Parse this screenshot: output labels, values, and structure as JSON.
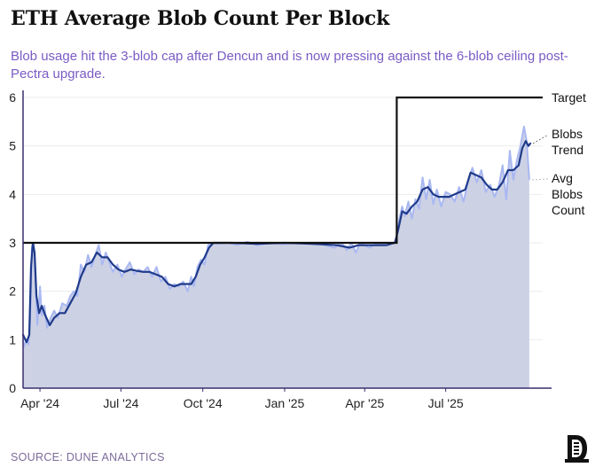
{
  "header": {
    "title": "ETH Average Blob Count Per Block",
    "subtitle": "Blob usage hit the 3-blob cap after Dencun and is now pressing against the 6-blob ceiling post-Pectra upgrade."
  },
  "footer": {
    "source": "SOURCE: DUNE ANALYTICS"
  },
  "colors": {
    "target": "#111111",
    "trend": "#1f3a8a",
    "avg": "#a9b8f2",
    "area": "#cdd1e4",
    "axis": "#3a2e6e",
    "subtitle": "#7a5bc4"
  },
  "chart_data": {
    "type": "line",
    "xlim": [
      "2024-03-13",
      "2025-10-18"
    ],
    "ylim": [
      0,
      6
    ],
    "yticks": [
      "0",
      "1",
      "2",
      "3",
      "4",
      "5",
      "6"
    ],
    "xticks": [
      {
        "date": "2024-04-01",
        "label": "Apr '24"
      },
      {
        "date": "2024-07-01",
        "label": "Jul '24"
      },
      {
        "date": "2024-10-01",
        "label": "Oct '24"
      },
      {
        "date": "2025-01-01",
        "label": "Jan '25"
      },
      {
        "date": "2025-04-01",
        "label": "Apr '25"
      },
      {
        "date": "2025-07-01",
        "label": "Jul '25"
      }
    ],
    "series": [
      {
        "name": "Target",
        "style": "step",
        "points": [
          [
            "2024-03-13",
            3
          ],
          [
            "2025-05-07",
            3
          ],
          [
            "2025-05-07",
            6
          ],
          [
            "2025-10-18",
            6
          ]
        ]
      },
      {
        "name": "Avg Blobs Count",
        "style": "area",
        "points": [
          [
            "2024-03-13",
            1.0
          ],
          [
            "2024-03-14",
            0.85
          ],
          [
            "2024-03-17",
            1.0
          ],
          [
            "2024-03-19",
            0.9
          ],
          [
            "2024-03-21",
            1.4
          ],
          [
            "2024-03-23",
            2.9
          ],
          [
            "2024-03-25",
            3.0
          ],
          [
            "2024-03-27",
            2.3
          ],
          [
            "2024-03-29",
            1.3
          ],
          [
            "2024-04-01",
            2.1
          ],
          [
            "2024-04-03",
            1.5
          ],
          [
            "2024-04-06",
            1.7
          ],
          [
            "2024-04-09",
            1.25
          ],
          [
            "2024-04-13",
            1.45
          ],
          [
            "2024-04-17",
            1.6
          ],
          [
            "2024-04-21",
            1.45
          ],
          [
            "2024-04-26",
            1.75
          ],
          [
            "2024-05-01",
            1.7
          ],
          [
            "2024-05-05",
            1.9
          ],
          [
            "2024-05-09",
            2.0
          ],
          [
            "2024-05-13",
            1.9
          ],
          [
            "2024-05-17",
            2.55
          ],
          [
            "2024-05-21",
            2.4
          ],
          [
            "2024-05-25",
            2.75
          ],
          [
            "2024-05-29",
            2.5
          ],
          [
            "2024-06-02",
            2.75
          ],
          [
            "2024-06-06",
            2.95
          ],
          [
            "2024-06-10",
            2.55
          ],
          [
            "2024-06-14",
            2.8
          ],
          [
            "2024-06-18",
            2.6
          ],
          [
            "2024-06-22",
            2.4
          ],
          [
            "2024-06-27",
            2.55
          ],
          [
            "2024-07-02",
            2.3
          ],
          [
            "2024-07-06",
            2.45
          ],
          [
            "2024-07-11",
            2.6
          ],
          [
            "2024-07-16",
            2.35
          ],
          [
            "2024-07-21",
            2.45
          ],
          [
            "2024-07-26",
            2.4
          ],
          [
            "2024-07-31",
            2.5
          ],
          [
            "2024-08-05",
            2.3
          ],
          [
            "2024-08-10",
            2.5
          ],
          [
            "2024-08-15",
            2.2
          ],
          [
            "2024-08-20",
            2.3
          ],
          [
            "2024-08-25",
            2.05
          ],
          [
            "2024-08-30",
            2.15
          ],
          [
            "2024-09-04",
            2.1
          ],
          [
            "2024-09-09",
            2.2
          ],
          [
            "2024-09-14",
            2.0
          ],
          [
            "2024-09-18",
            2.3
          ],
          [
            "2024-09-21",
            2.1
          ],
          [
            "2024-09-25",
            2.5
          ],
          [
            "2024-09-29",
            2.65
          ],
          [
            "2024-10-03",
            2.55
          ],
          [
            "2024-10-07",
            2.95
          ],
          [
            "2024-10-11",
            3.0
          ],
          [
            "2024-10-18",
            2.98
          ],
          [
            "2024-10-28",
            3.0
          ],
          [
            "2024-11-09",
            2.96
          ],
          [
            "2024-11-20",
            3.02
          ],
          [
            "2024-12-01",
            2.95
          ],
          [
            "2024-12-15",
            3.0
          ],
          [
            "2024-12-31",
            2.97
          ],
          [
            "2025-01-15",
            3.0
          ],
          [
            "2025-01-31",
            2.98
          ],
          [
            "2025-02-12",
            2.97
          ],
          [
            "2025-02-26",
            2.9
          ],
          [
            "2025-03-06",
            3.0
          ],
          [
            "2025-03-12",
            2.85
          ],
          [
            "2025-03-17",
            3.0
          ],
          [
            "2025-03-22",
            2.8
          ],
          [
            "2025-03-27",
            3.0
          ],
          [
            "2025-04-06",
            2.9
          ],
          [
            "2025-04-16",
            3.0
          ],
          [
            "2025-04-26",
            2.95
          ],
          [
            "2025-05-04",
            3.0
          ],
          [
            "2025-05-07",
            3.1
          ],
          [
            "2025-05-10",
            3.5
          ],
          [
            "2025-05-13",
            3.75
          ],
          [
            "2025-05-16",
            3.55
          ],
          [
            "2025-05-20",
            3.85
          ],
          [
            "2025-05-24",
            3.5
          ],
          [
            "2025-05-28",
            3.9
          ],
          [
            "2025-06-01",
            3.7
          ],
          [
            "2025-06-05",
            4.35
          ],
          [
            "2025-06-09",
            3.9
          ],
          [
            "2025-06-13",
            4.3
          ],
          [
            "2025-06-17",
            3.8
          ],
          [
            "2025-06-21",
            4.1
          ],
          [
            "2025-06-26",
            3.75
          ],
          [
            "2025-07-01",
            4.05
          ],
          [
            "2025-07-06",
            4.0
          ],
          [
            "2025-07-11",
            3.85
          ],
          [
            "2025-07-16",
            4.15
          ],
          [
            "2025-07-21",
            3.85
          ],
          [
            "2025-07-26",
            4.25
          ],
          [
            "2025-07-31",
            4.55
          ],
          [
            "2025-08-05",
            4.25
          ],
          [
            "2025-08-10",
            4.5
          ],
          [
            "2025-08-15",
            4.05
          ],
          [
            "2025-08-20",
            4.2
          ],
          [
            "2025-08-25",
            3.95
          ],
          [
            "2025-08-30",
            4.2
          ],
          [
            "2025-09-03",
            4.6
          ],
          [
            "2025-09-07",
            3.9
          ],
          [
            "2025-09-11",
            4.9
          ],
          [
            "2025-09-15",
            4.3
          ],
          [
            "2025-09-19",
            4.7
          ],
          [
            "2025-09-23",
            5.0
          ],
          [
            "2025-09-27",
            5.4
          ],
          [
            "2025-09-30",
            5.1
          ],
          [
            "2025-10-03",
            4.3
          ]
        ]
      },
      {
        "name": "Blobs Trend",
        "style": "line",
        "points": [
          [
            "2024-03-13",
            1.1
          ],
          [
            "2024-03-17",
            0.95
          ],
          [
            "2024-03-20",
            1.1
          ],
          [
            "2024-03-22",
            2.5
          ],
          [
            "2024-03-24",
            3.0
          ],
          [
            "2024-03-26",
            2.8
          ],
          [
            "2024-03-28",
            1.9
          ],
          [
            "2024-03-31",
            1.55
          ],
          [
            "2024-04-03",
            1.7
          ],
          [
            "2024-04-07",
            1.5
          ],
          [
            "2024-04-12",
            1.3
          ],
          [
            "2024-04-17",
            1.45
          ],
          [
            "2024-04-23",
            1.55
          ],
          [
            "2024-04-29",
            1.55
          ],
          [
            "2024-05-05",
            1.75
          ],
          [
            "2024-05-11",
            1.95
          ],
          [
            "2024-05-17",
            2.3
          ],
          [
            "2024-05-23",
            2.55
          ],
          [
            "2024-05-29",
            2.6
          ],
          [
            "2024-06-04",
            2.8
          ],
          [
            "2024-06-10",
            2.7
          ],
          [
            "2024-06-16",
            2.7
          ],
          [
            "2024-06-22",
            2.55
          ],
          [
            "2024-06-28",
            2.45
          ],
          [
            "2024-07-05",
            2.4
          ],
          [
            "2024-07-12",
            2.45
          ],
          [
            "2024-07-19",
            2.42
          ],
          [
            "2024-07-26",
            2.4
          ],
          [
            "2024-08-02",
            2.4
          ],
          [
            "2024-08-09",
            2.35
          ],
          [
            "2024-08-16",
            2.3
          ],
          [
            "2024-08-23",
            2.15
          ],
          [
            "2024-08-30",
            2.1
          ],
          [
            "2024-09-06",
            2.15
          ],
          [
            "2024-09-13",
            2.15
          ],
          [
            "2024-09-18",
            2.15
          ],
          [
            "2024-09-23",
            2.3
          ],
          [
            "2024-09-28",
            2.55
          ],
          [
            "2024-10-03",
            2.7
          ],
          [
            "2024-10-08",
            2.9
          ],
          [
            "2024-10-13",
            3.0
          ],
          [
            "2024-11-01",
            3.0
          ],
          [
            "2024-12-01",
            2.98
          ],
          [
            "2025-01-01",
            3.0
          ],
          [
            "2025-02-01",
            2.98
          ],
          [
            "2025-03-01",
            2.95
          ],
          [
            "2025-03-15",
            2.9
          ],
          [
            "2025-03-25",
            2.95
          ],
          [
            "2025-04-10",
            2.95
          ],
          [
            "2025-04-25",
            2.95
          ],
          [
            "2025-05-05",
            3.0
          ],
          [
            "2025-05-09",
            3.3
          ],
          [
            "2025-05-13",
            3.65
          ],
          [
            "2025-05-18",
            3.6
          ],
          [
            "2025-05-24",
            3.75
          ],
          [
            "2025-05-30",
            3.85
          ],
          [
            "2025-06-05",
            4.1
          ],
          [
            "2025-06-11",
            4.15
          ],
          [
            "2025-06-17",
            4.0
          ],
          [
            "2025-06-23",
            3.95
          ],
          [
            "2025-06-29",
            3.95
          ],
          [
            "2025-07-05",
            3.95
          ],
          [
            "2025-07-11",
            4.0
          ],
          [
            "2025-07-17",
            4.05
          ],
          [
            "2025-07-23",
            4.1
          ],
          [
            "2025-07-29",
            4.45
          ],
          [
            "2025-08-04",
            4.4
          ],
          [
            "2025-08-10",
            4.35
          ],
          [
            "2025-08-16",
            4.2
          ],
          [
            "2025-08-22",
            4.1
          ],
          [
            "2025-08-28",
            4.1
          ],
          [
            "2025-09-03",
            4.25
          ],
          [
            "2025-09-09",
            4.5
          ],
          [
            "2025-09-15",
            4.5
          ],
          [
            "2025-09-21",
            4.6
          ],
          [
            "2025-09-25",
            4.95
          ],
          [
            "2025-09-29",
            5.1
          ],
          [
            "2025-10-02",
            5.0
          ],
          [
            "2025-10-04",
            5.05
          ]
        ]
      }
    ],
    "legend": [
      {
        "name": "Target",
        "lines": [
          "Target"
        ]
      },
      {
        "name": "Blobs Trend",
        "lines": [
          "Blobs",
          "Trend"
        ]
      },
      {
        "name": "Avg Blobs Count",
        "lines": [
          "Avg",
          "Blobs",
          "Count"
        ]
      }
    ],
    "legend_placement": "right",
    "grid": true
  }
}
